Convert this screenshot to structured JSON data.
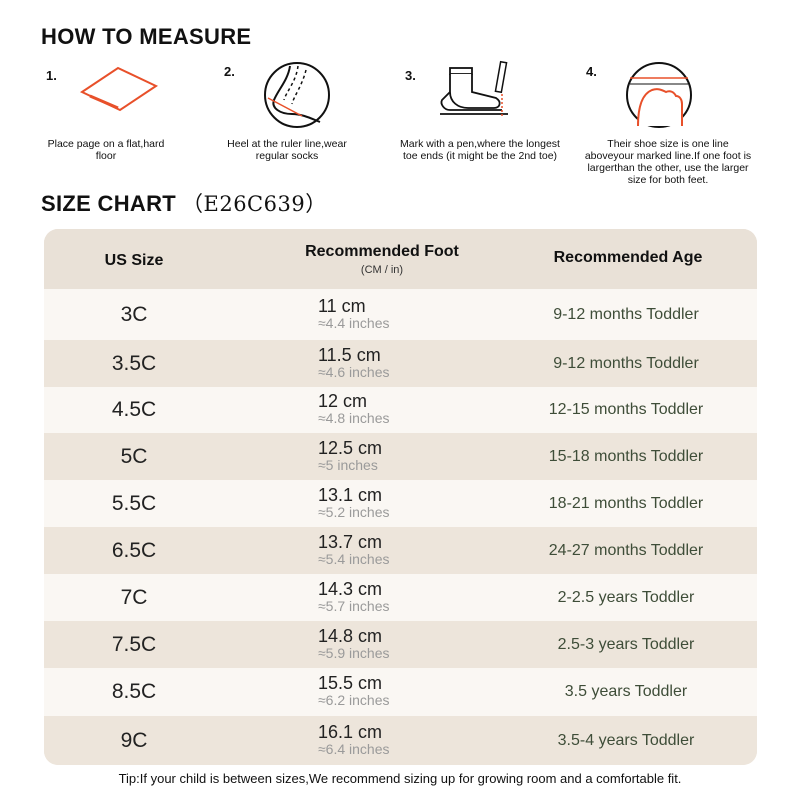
{
  "measure": {
    "title": "HOW TO MEASURE",
    "steps": [
      {
        "num": "1.",
        "text": "Place page on a flat,hard floor"
      },
      {
        "num": "2.",
        "text": "Heel at the ruler line,wear regular socks"
      },
      {
        "num": "3.",
        "text": "Mark with a pen,where the longest toe ends (it might be the 2nd toe)"
      },
      {
        "num": "4.",
        "text": "Their shoe size is one line aboveyour marked line.If one foot is largerthan the other, use the larger size for both feet."
      }
    ]
  },
  "chart": {
    "title": "SIZE CHART",
    "code": "（E26C639）",
    "headers": {
      "size": "US Size",
      "foot": "Recommended Foot",
      "foot_unit": "(CM / in)",
      "age": "Recommended Age"
    },
    "rows": [
      {
        "size": "3C",
        "cm": "11 cm",
        "in": "≈4.4 inches",
        "age": "9-12 months Toddler"
      },
      {
        "size": "3.5C",
        "cm": "11.5 cm",
        "in": "≈4.6 inches",
        "age": "9-12 months Toddler"
      },
      {
        "size": "4.5C",
        "cm": "12 cm",
        "in": "≈4.8 inches",
        "age": "12-15 months Toddler"
      },
      {
        "size": "5C",
        "cm": "12.5 cm",
        "in": "≈5 inches",
        "age": "15-18 months Toddler"
      },
      {
        "size": "5.5C",
        "cm": "13.1 cm",
        "in": "≈5.2 inches",
        "age": "18-21 months Toddler"
      },
      {
        "size": "6.5C",
        "cm": "13.7 cm",
        "in": "≈5.4 inches",
        "age": "24-27 months Toddler"
      },
      {
        "size": "7C",
        "cm": "14.3 cm",
        "in": "≈5.7 inches",
        "age": "2-2.5 years Toddler"
      },
      {
        "size": "7.5C",
        "cm": "14.8 cm",
        "in": "≈5.9 inches",
        "age": "2.5-3 years Toddler"
      },
      {
        "size": "8.5C",
        "cm": "15.5 cm",
        "in": "≈6.2 inches",
        "age": "3.5 years Toddler"
      },
      {
        "size": "9C",
        "cm": "16.1 cm",
        "in": "≈6.4 inches",
        "age": "3.5-4 years Toddler"
      }
    ]
  },
  "tip": "Tip:If your child is between sizes,We recommend sizing up for growing room and a comfortable fit.",
  "colors": {
    "accent": "#e8502a",
    "header_bg": "#e9e1d7",
    "row_light": "#faf7f3",
    "row_dark": "#ede5db",
    "age_text": "#3e4d38"
  }
}
